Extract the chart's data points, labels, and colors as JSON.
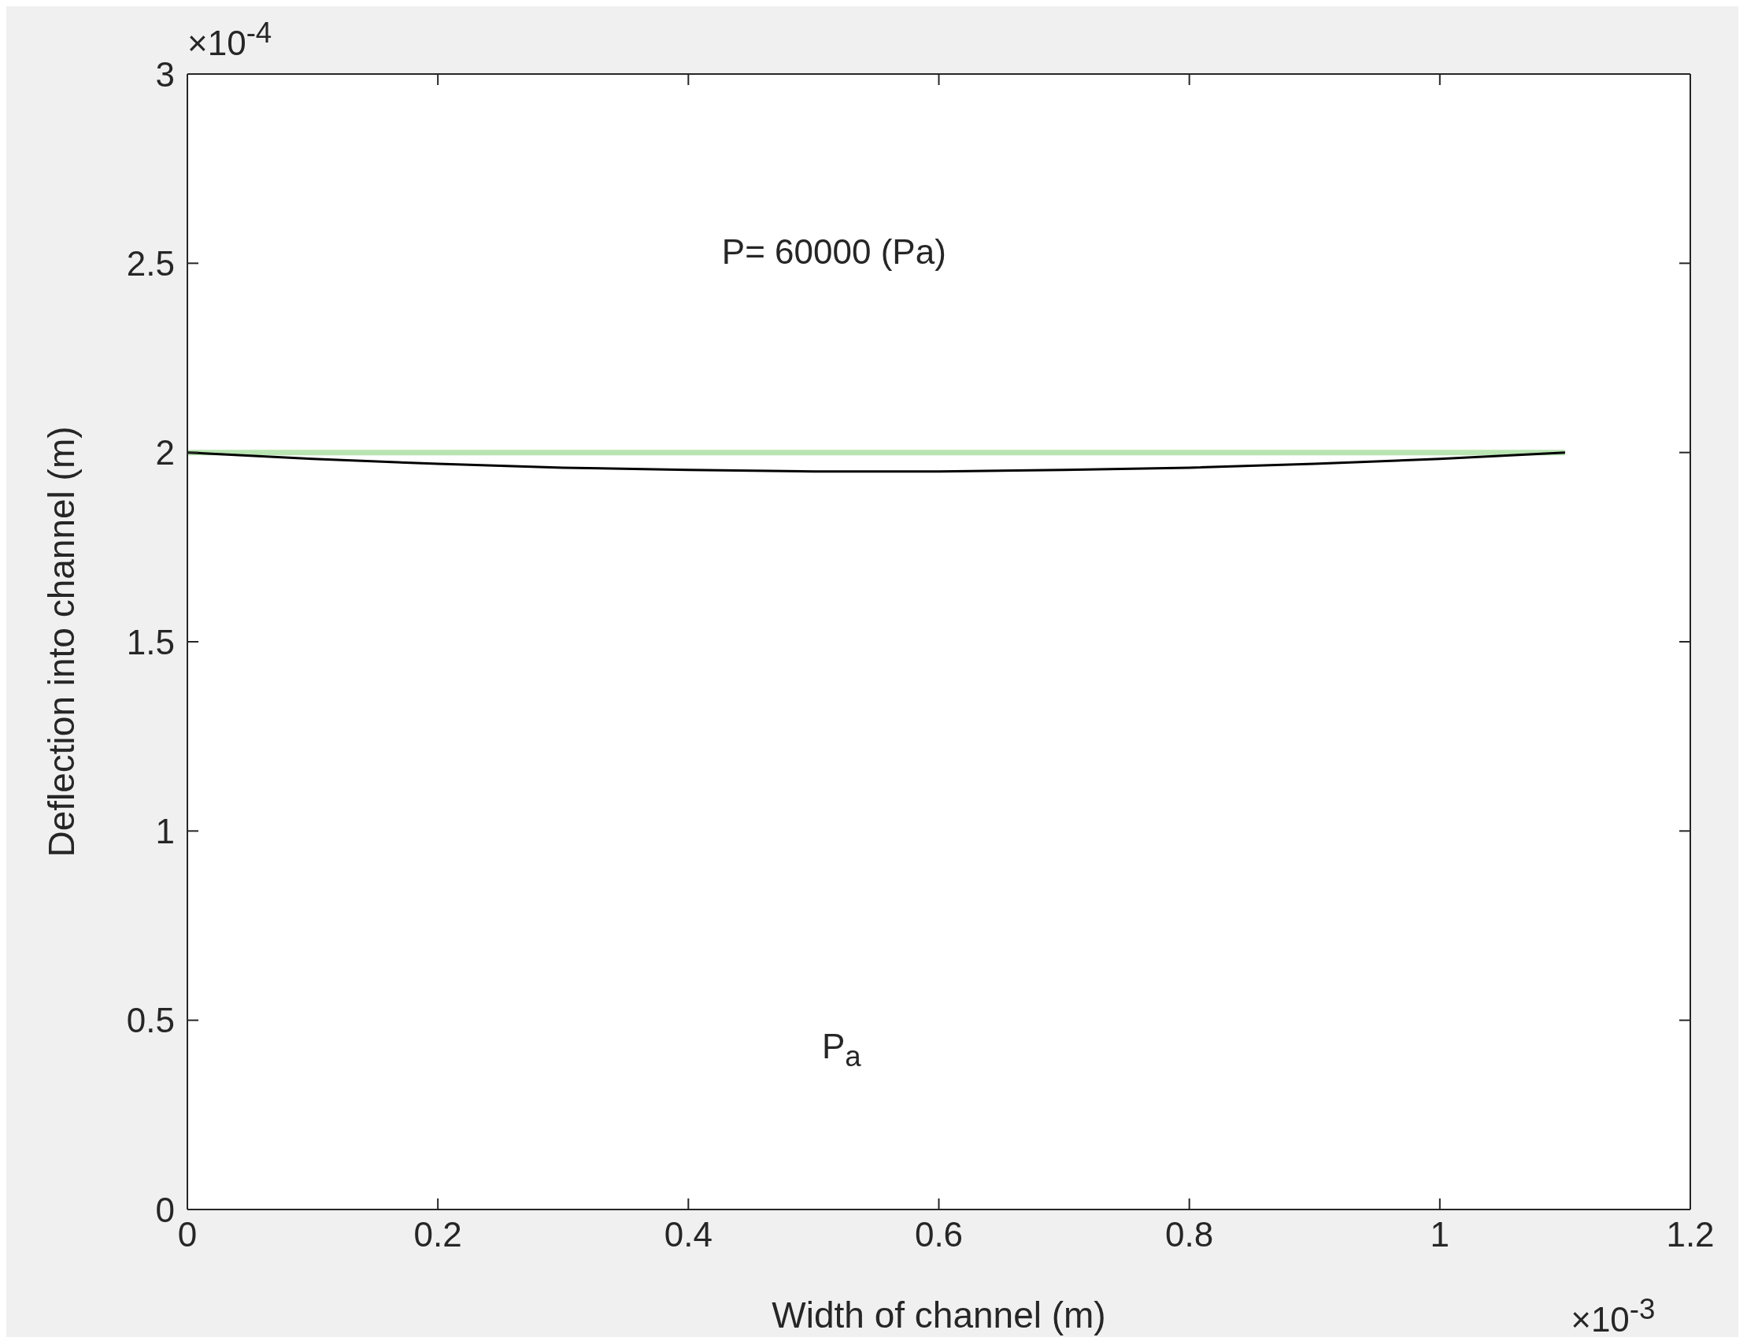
{
  "chart_data": {
    "type": "line",
    "xlabel": "Width of channel (m)",
    "ylabel": "Deflection into channel (m)",
    "annotations": [
      "P= 60000 (Pa)",
      "P$_{a}$",
      "×10$^{-4}$",
      "×10$^{-3}$"
    ],
    "x": [
      0,
      0.1,
      0.2,
      0.3,
      0.4,
      0.5,
      0.55,
      0.6,
      0.7,
      0.8,
      0.9,
      1.0,
      1.1
    ],
    "series": [
      {
        "color": "#b8e4b2",
        "values": [
          2,
          2,
          2,
          2,
          2,
          2,
          2,
          2,
          2,
          2,
          2,
          2,
          2
        ]
      },
      {
        "color": "#000000",
        "values": [
          2,
          1.983,
          1.97,
          1.96,
          1.954,
          1.95,
          1.95,
          1.95,
          1.954,
          1.96,
          1.97,
          1.983,
          2
        ]
      }
    ],
    "xlim": [
      0,
      1.2
    ],
    "xticks": [
      0,
      0.2,
      0.4,
      0.6,
      0.8,
      1,
      1.2
    ],
    "ylim": [
      0,
      3
    ],
    "yticks": [
      0,
      0.5,
      1,
      1.5,
      2,
      2.5,
      3
    ],
    "grid": false,
    "legend": false,
    "marker": "none",
    "line_style": "solid"
  }
}
